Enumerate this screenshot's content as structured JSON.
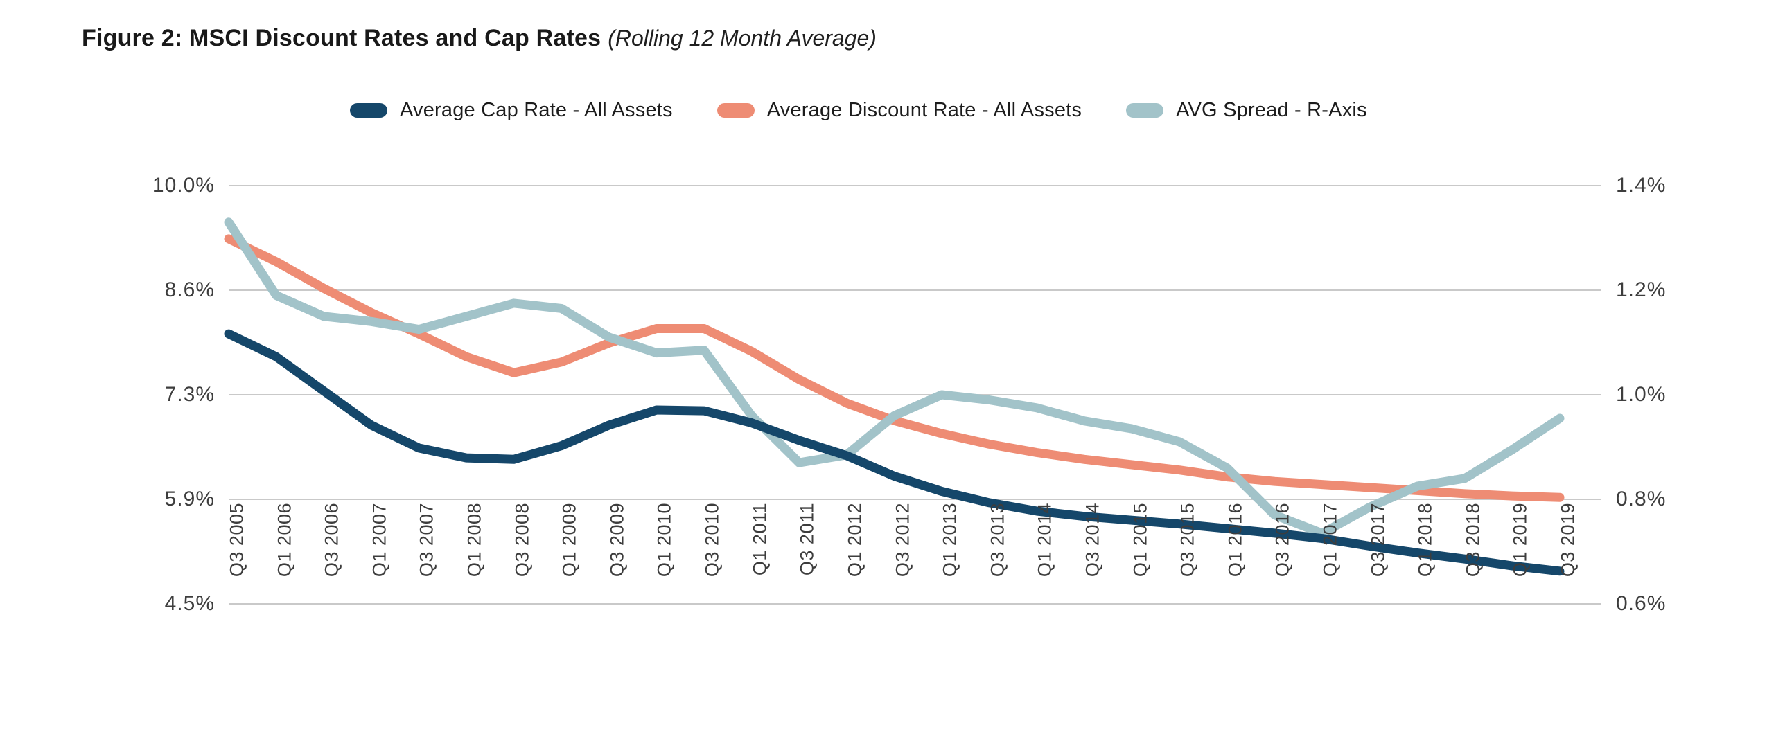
{
  "title": {
    "main": "Figure 2: MSCI Discount Rates and Cap Rates",
    "subtitle": "(Rolling 12 Month Average)"
  },
  "colors": {
    "cap_rate": "#15476a",
    "discount_rate": "#ee8c74",
    "spread": "#a2c3c9",
    "gridline": "#c9c9c9",
    "tick_text": "#3d3d3d"
  },
  "legend": [
    {
      "label": "Average Cap Rate - All Assets",
      "color": "#15476a"
    },
    {
      "label": "Average Discount Rate - All Assets",
      "color": "#ee8c74"
    },
    {
      "label": "AVG Spread - R-Axis",
      "color": "#a2c3c9"
    }
  ],
  "chart_data": {
    "type": "line",
    "title": "Figure 2: MSCI Discount Rates and Cap Rates (Rolling 12 Month Average)",
    "grid": true,
    "legend_position": "top",
    "x": [
      "Q3 2005",
      "Q1 2006",
      "Q3 2006",
      "Q1 2007",
      "Q3 2007",
      "Q1 2008",
      "Q3 2008",
      "Q1 2009",
      "Q3 2009",
      "Q1 2010",
      "Q3 2010",
      "Q1 2011",
      "Q3 2011",
      "Q1 2012",
      "Q3 2012",
      "Q1 2013",
      "Q3 2013",
      "Q1 2014",
      "Q3 2014",
      "Q1 2015",
      "Q3 2015",
      "Q1 2016",
      "Q3 2016",
      "Q1 2017",
      "Q3 2017",
      "Q1 2018",
      "Q3 2018",
      "Q1 2019",
      "Q3 2019"
    ],
    "left_axis": {
      "ticks": [
        "10.0%",
        "8.6%",
        "7.3%",
        "5.9%",
        "4.5%"
      ],
      "max": 10.0,
      "min": 4.5
    },
    "right_axis": {
      "ticks": [
        "1.4%",
        "1.2%",
        "1.0%",
        "0.8%",
        "0.6%"
      ],
      "max": 1.4,
      "min": 0.6
    },
    "series": [
      {
        "name": "Average Cap Rate - All Assets",
        "axis": "left",
        "color": "#15476a",
        "values": [
          8.05,
          7.75,
          7.3,
          6.85,
          6.55,
          6.42,
          6.4,
          6.58,
          6.85,
          7.05,
          7.04,
          6.88,
          6.65,
          6.45,
          6.18,
          5.98,
          5.83,
          5.72,
          5.65,
          5.6,
          5.55,
          5.49,
          5.43,
          5.36,
          5.26,
          5.17,
          5.09,
          5.0,
          4.93
        ]
      },
      {
        "name": "Average Discount Rate - All Assets",
        "axis": "left",
        "color": "#ee8c74",
        "values": [
          9.3,
          9.0,
          8.65,
          8.33,
          8.05,
          7.75,
          7.54,
          7.68,
          7.93,
          8.12,
          8.12,
          7.82,
          7.45,
          7.14,
          6.91,
          6.74,
          6.6,
          6.49,
          6.4,
          6.33,
          6.26,
          6.17,
          6.11,
          6.07,
          6.03,
          5.99,
          5.95,
          5.92,
          5.9
        ]
      },
      {
        "name": "AVG Spread - R-Axis",
        "axis": "right",
        "color": "#a2c3c9",
        "values": [
          1.33,
          1.19,
          1.15,
          1.14,
          1.125,
          1.15,
          1.175,
          1.165,
          1.11,
          1.08,
          1.085,
          0.96,
          0.87,
          0.885,
          0.96,
          1.0,
          0.99,
          0.975,
          0.95,
          0.935,
          0.91,
          0.86,
          0.77,
          0.735,
          0.785,
          0.825,
          0.84,
          0.895,
          0.955
        ]
      }
    ]
  }
}
